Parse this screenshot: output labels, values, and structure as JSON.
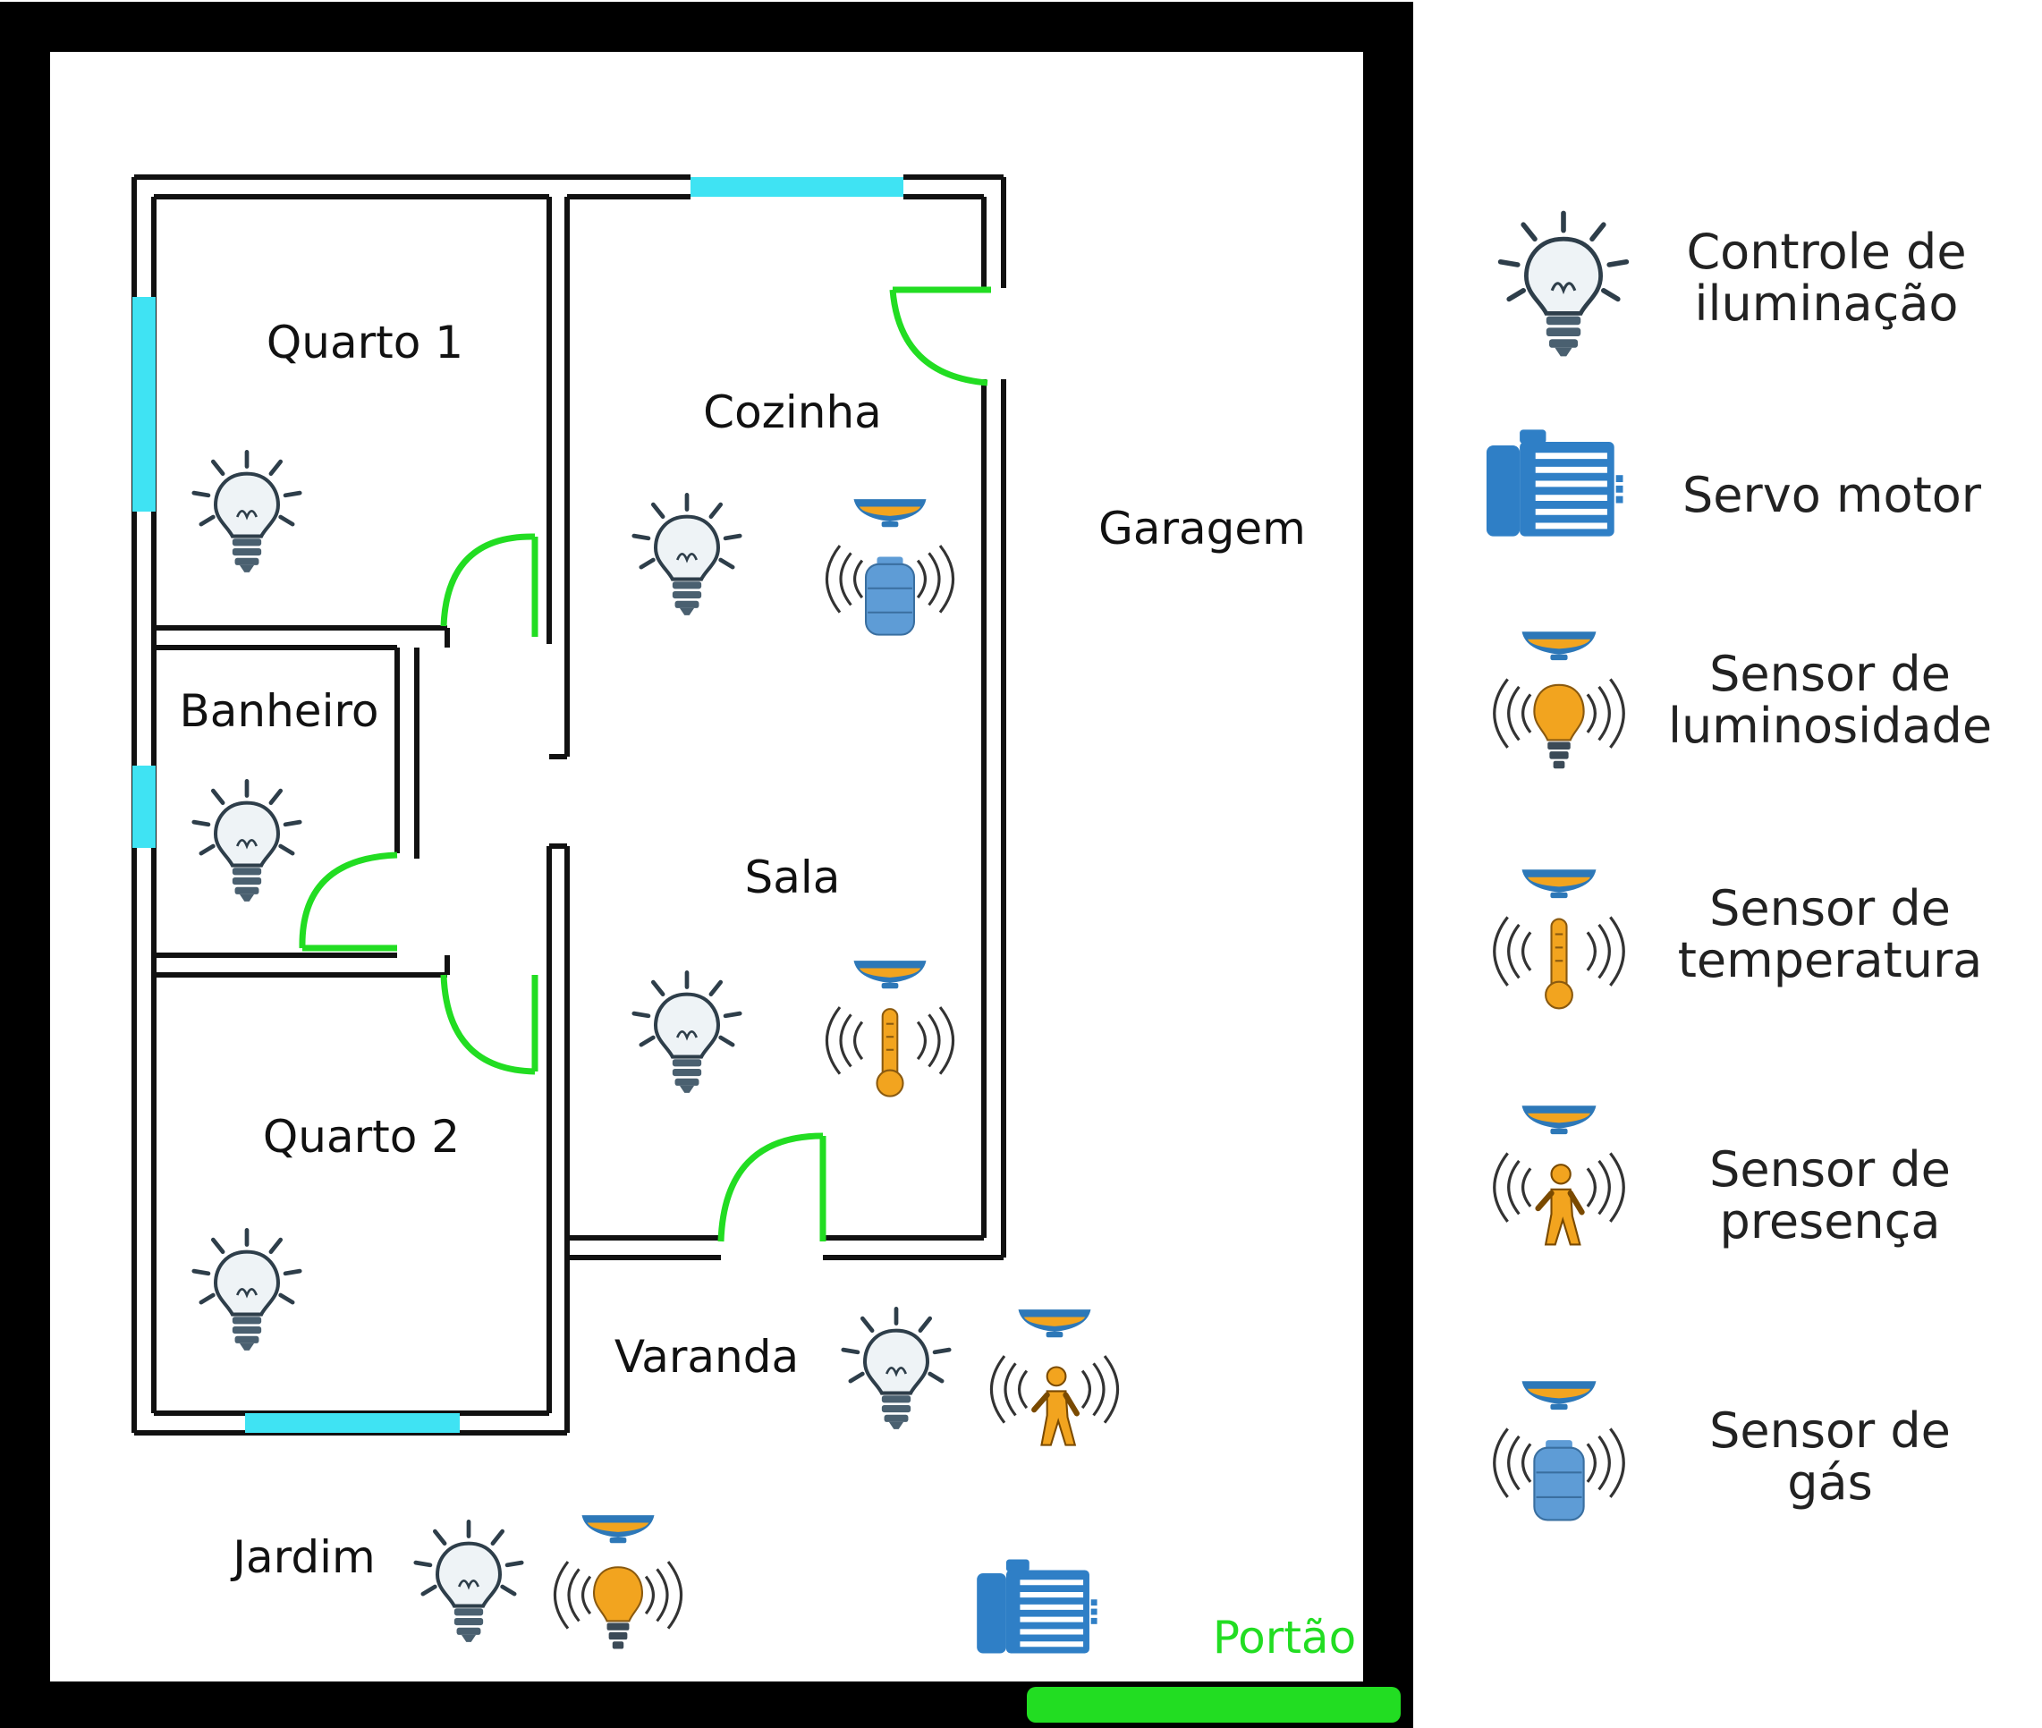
{
  "rooms": {
    "quarto1": "Quarto 1",
    "cozinha": "Cozinha",
    "garagem": "Garagem",
    "banheiro": "Banheiro",
    "sala": "Sala",
    "quarto2": "Quarto 2",
    "varanda": "Varanda",
    "jardim": "Jardim",
    "portao": "Portão"
  },
  "legend": [
    {
      "icon": "light-bulb-icon",
      "line1": "Controle de",
      "line2": "iluminação"
    },
    {
      "icon": "servo-motor-icon",
      "line1": "Servo motor",
      "line2": ""
    },
    {
      "icon": "light-sensor-icon",
      "line1": "Sensor de",
      "line2": "luminosidade"
    },
    {
      "icon": "temperature-sensor-icon",
      "line1": "Sensor de",
      "line2": "temperatura"
    },
    {
      "icon": "presence-sensor-icon",
      "line1": "Sensor de",
      "line2": "presença"
    },
    {
      "icon": "gas-sensor-icon",
      "line1": "Sensor de",
      "line2": "gás"
    }
  ],
  "colors": {
    "boundary": "#000000",
    "walls": "#111111",
    "windows": "#3fe3f3",
    "doors": "#22dd22",
    "portao": "#22dd22",
    "sensor_cap_blue": "#2d78b8",
    "sensor_cap_orange": "#f2a41f",
    "motor_blue": "#2f7fc6",
    "bulb_stroke": "#2e3e4a"
  }
}
